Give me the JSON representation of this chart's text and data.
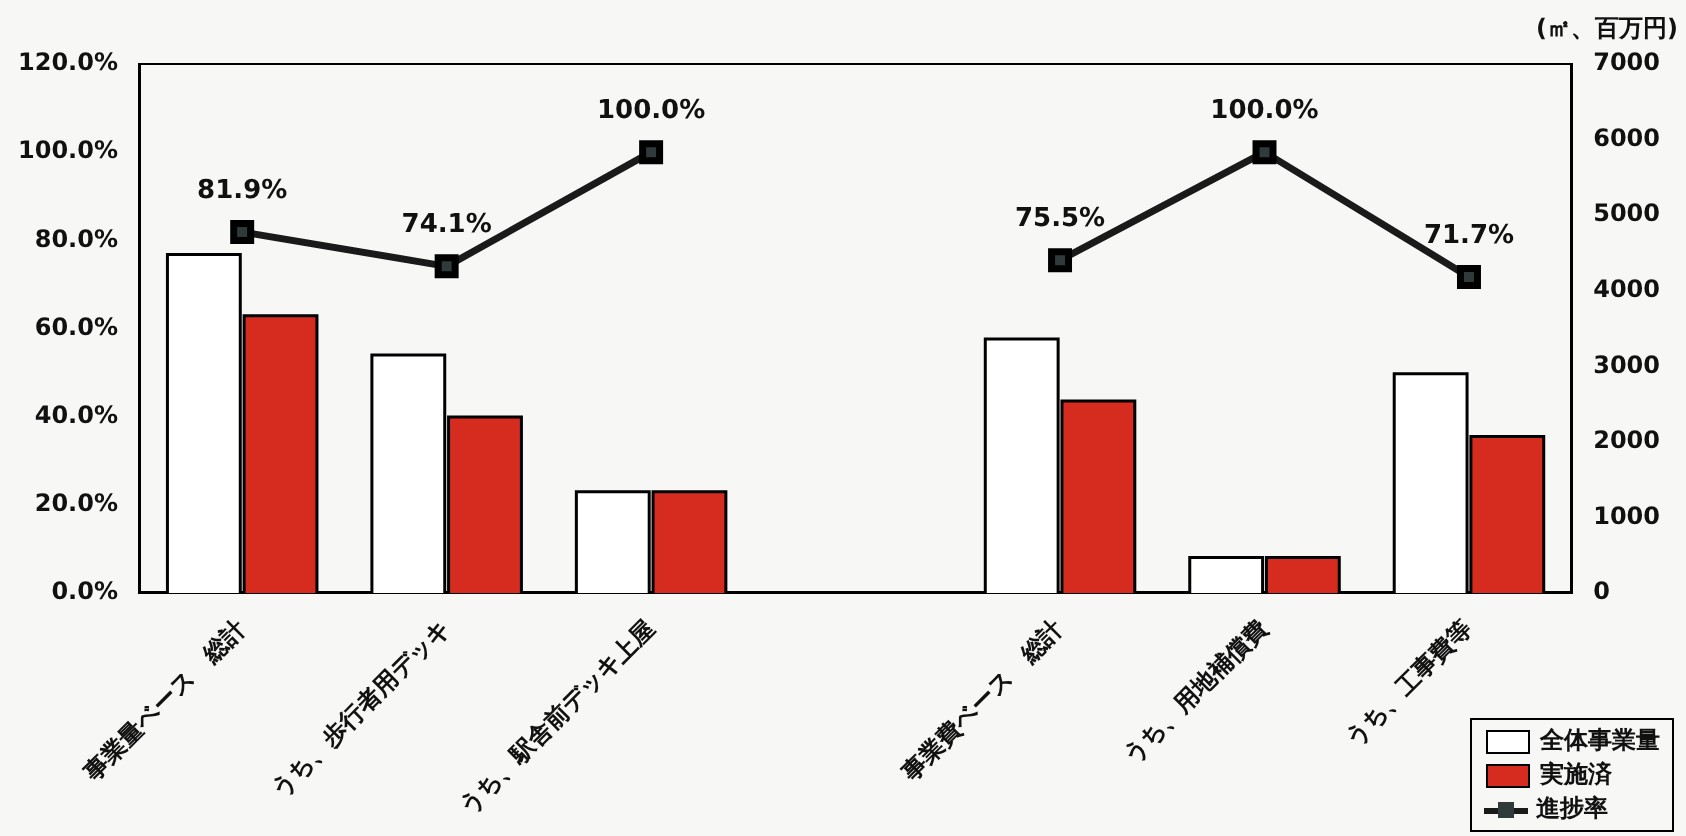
{
  "chart_data": {
    "type": "bar",
    "categories": [
      "事業量ベース　総計",
      "うち、歩行者用デッキ",
      "うち、駅舎前デッキ上屋",
      null,
      "事業費ベース　総計",
      "うち、用地補償費",
      "うち、工事費等"
    ],
    "series": [
      {
        "name": "全体事業量",
        "color": "#ffffff",
        "axis": "y2",
        "values": [
          4480,
          3150,
          1340,
          null,
          3360,
          470,
          2900
        ]
      },
      {
        "name": "実施済",
        "color": "#d62b1f",
        "axis": "y2",
        "values": [
          3670,
          2330,
          1340,
          null,
          2540,
          470,
          2070
        ]
      },
      {
        "name": "進捗率",
        "type": "line",
        "color": "#1a1a1a",
        "marker": "square",
        "values": [
          81.9,
          74.1,
          100.0,
          null,
          75.5,
          100.0,
          71.7
        ],
        "value_labels": [
          "81.9%",
          "74.1%",
          "100.0%",
          null,
          "75.5%",
          "100.0%",
          "71.7%"
        ]
      }
    ],
    "ylim": [
      0,
      120
    ],
    "yticks": [
      {
        "value": 0,
        "label": "0.0%"
      },
      {
        "value": 20,
        "label": "20.0%"
      },
      {
        "value": 40,
        "label": "40.0%"
      },
      {
        "value": 60,
        "label": "60.0%"
      },
      {
        "value": 80,
        "label": "80.0%"
      },
      {
        "value": 100,
        "label": "100.0%"
      },
      {
        "value": 120,
        "label": "120.0%"
      }
    ],
    "y2lim": [
      0,
      7000
    ],
    "y2ticks": [
      0,
      1000,
      2000,
      3000,
      4000,
      5000,
      6000,
      7000
    ],
    "y2label": "(㎡、百万円)",
    "grid": false,
    "legend": "bottom right"
  }
}
